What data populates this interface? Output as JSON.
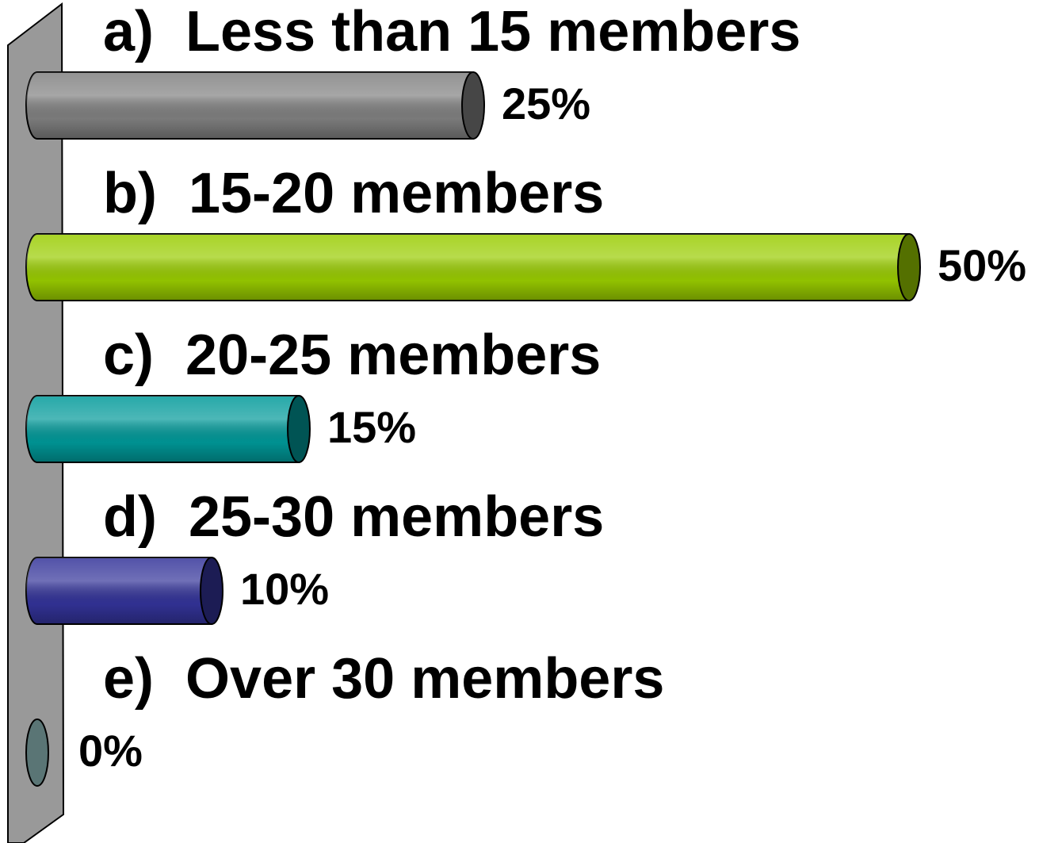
{
  "chart_data": {
    "type": "bar",
    "categories": [
      "a)  Less than 15 members",
      "b)  15-20 members",
      "c)  20-25 members",
      "d)  25-30 members",
      "e)  Over 30 members"
    ],
    "values": [
      25,
      50,
      15,
      10,
      0
    ],
    "value_labels": [
      "25%",
      "50%",
      "15%",
      "10%",
      "0%"
    ],
    "colors": [
      "#808080",
      "#99cc00",
      "#009999",
      "#333399",
      "#6a8a8a"
    ]
  }
}
